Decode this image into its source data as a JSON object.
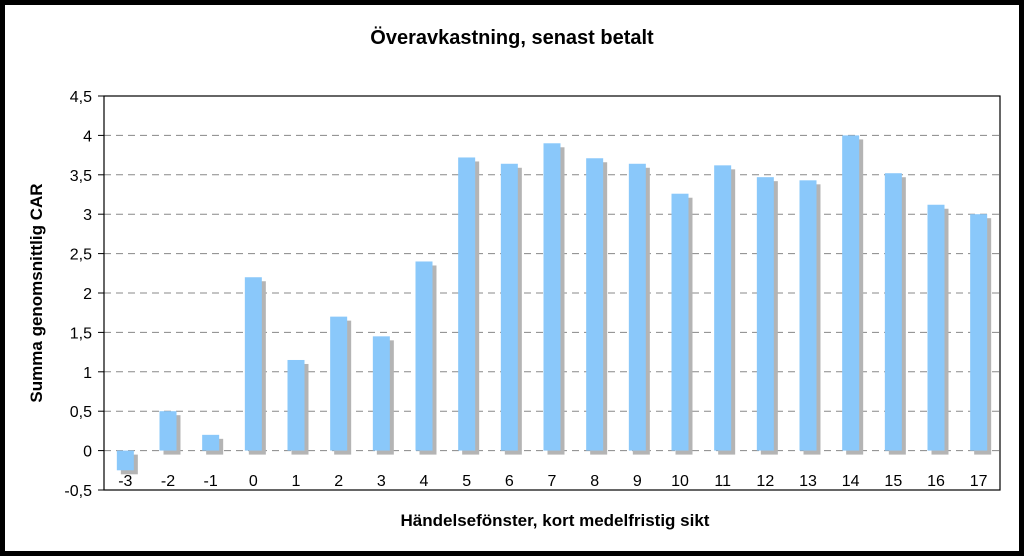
{
  "chart_data": {
    "type": "bar",
    "title": "Överavkastning, senast betalt",
    "xlabel": "Händelsefönster, kort medelfristig sikt",
    "ylabel": "Summa genomsnittlig CAR",
    "categories": [
      "-3",
      "-2",
      "-1",
      "0",
      "1",
      "2",
      "3",
      "4",
      "5",
      "6",
      "7",
      "8",
      "9",
      "10",
      "11",
      "12",
      "13",
      "14",
      "15",
      "16",
      "17"
    ],
    "values": [
      -0.25,
      0.5,
      0.2,
      2.2,
      1.15,
      1.7,
      1.45,
      2.4,
      3.72,
      3.64,
      3.9,
      3.71,
      3.64,
      3.26,
      3.62,
      3.47,
      3.43,
      4.0,
      3.52,
      3.12,
      3.0
    ],
    "ylim": [
      -0.5,
      4.5
    ],
    "yticks": [
      -0.5,
      0,
      0.5,
      1,
      1.5,
      2,
      2.5,
      3,
      3.5,
      4,
      4.5
    ],
    "ytick_labels": [
      "-0,5",
      "0",
      "0,5",
      "1",
      "1,5",
      "2",
      "2,5",
      "3",
      "3,5",
      "4",
      "4,5"
    ],
    "grid": true,
    "colors": {
      "bar": "#8ac8fa",
      "bar_shadow": "#b4b4b4",
      "grid": "#888888"
    }
  }
}
